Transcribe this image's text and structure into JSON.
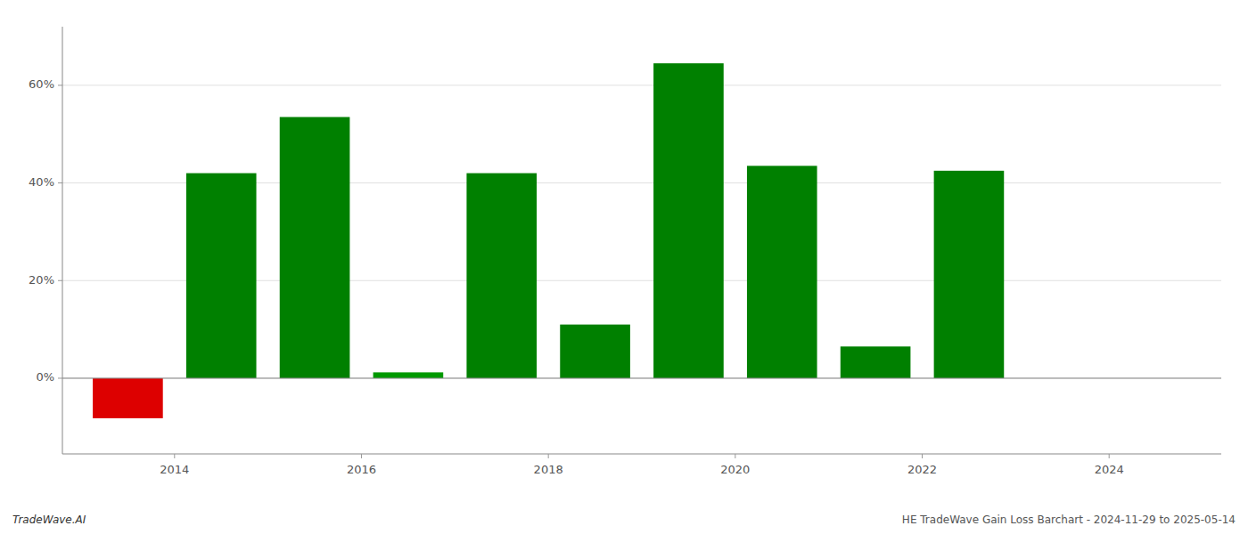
{
  "chart_data": {
    "type": "bar",
    "x": [
      2013,
      2014,
      2015,
      2016,
      2017,
      2018,
      2019,
      2020,
      2021,
      2022,
      2023
    ],
    "values": [
      -0.082,
      0.42,
      0.535,
      0.012,
      0.42,
      0.11,
      0.645,
      0.435,
      0.065,
      0.425,
      0.0
    ],
    "colors": [
      "#dd0000",
      "#008000",
      "#008000",
      "#009900",
      "#008000",
      "#008000",
      "#008000",
      "#008000",
      "#008000",
      "#008000",
      "#008000"
    ],
    "xlim": [
      2012.3,
      2024.7
    ],
    "xticks": [
      {
        "value": 2013.5,
        "label": "2014"
      },
      {
        "value": 2015.5,
        "label": "2016"
      },
      {
        "value": 2017.5,
        "label": "2018"
      },
      {
        "value": 2019.5,
        "label": "2020"
      },
      {
        "value": 2021.5,
        "label": "2022"
      },
      {
        "value": 2023.5,
        "label": "2024"
      }
    ],
    "ylim": [
      -0.155,
      0.72
    ],
    "yticks": [
      {
        "value": 0.0,
        "label": "0%"
      },
      {
        "value": 0.2,
        "label": "20%"
      },
      {
        "value": 0.4,
        "label": "40%"
      },
      {
        "value": 0.6,
        "label": "60%"
      }
    ],
    "grid": true,
    "annotations": [
      "TradeWave.AI",
      "HE TradeWave Gain Loss Barchart - 2024-11-29 to 2025-05-14"
    ]
  }
}
